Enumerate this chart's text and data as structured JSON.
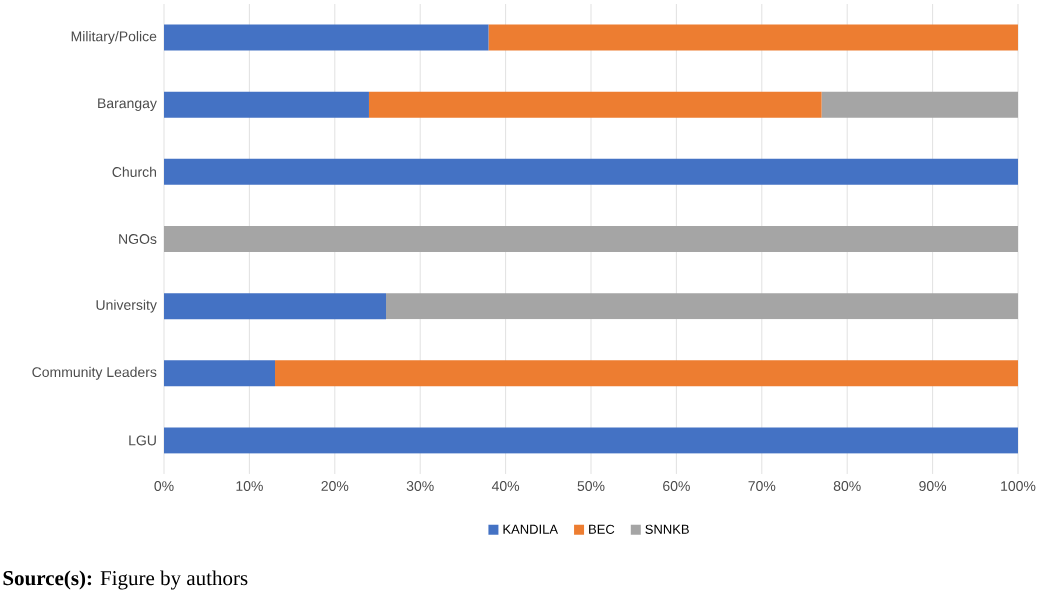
{
  "chart_data": {
    "type": "bar",
    "orientation": "horizontal",
    "stacked": true,
    "categories": [
      "Military/Police",
      "Barangay",
      "Church",
      "NGOs",
      "University",
      "Community Leaders",
      "LGU"
    ],
    "series": [
      {
        "name": "KANDILA",
        "color": "#4472c4",
        "values": [
          38,
          24,
          100,
          0,
          26,
          13,
          100
        ]
      },
      {
        "name": "BEC",
        "color": "#ed7d31",
        "values": [
          62,
          53,
          0,
          0,
          0,
          87,
          0
        ]
      },
      {
        "name": "SNNKB",
        "color": "#a5a5a5",
        "values": [
          0,
          23,
          0,
          100,
          74,
          0,
          0
        ]
      }
    ],
    "xlim": [
      0,
      100
    ],
    "xticks": [
      {
        "value": 0,
        "label": "0%"
      },
      {
        "value": 10,
        "label": "10%"
      },
      {
        "value": 20,
        "label": "20%"
      },
      {
        "value": 30,
        "label": "30%"
      },
      {
        "value": 40,
        "label": "40%"
      },
      {
        "value": 50,
        "label": "50%"
      },
      {
        "value": 60,
        "label": "60%"
      },
      {
        "value": 70,
        "label": "70%"
      },
      {
        "value": 80,
        "label": "80%"
      },
      {
        "value": 90,
        "label": "90%"
      },
      {
        "value": 100,
        "label": "100%"
      }
    ],
    "grid": "x",
    "legend": "bottom",
    "annotations": [
      "**Source(s):** Figure by authors"
    ]
  }
}
